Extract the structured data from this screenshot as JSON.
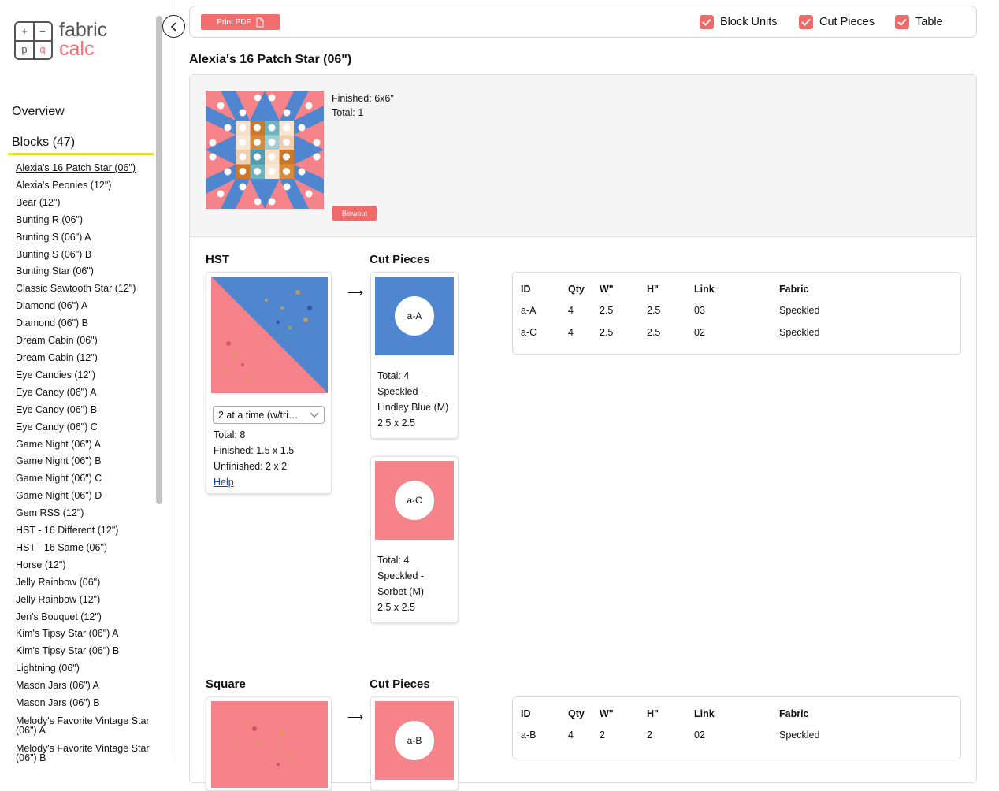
{
  "app": {
    "logo_line1": "fabric",
    "logo_line2": "calc",
    "logo_cells": [
      "+",
      "−",
      "p",
      "q"
    ]
  },
  "sidebar": {
    "overview_label": "Overview",
    "blocks_label": "Blocks (47)",
    "items": [
      "Alexia's 16 Patch Star (06\")",
      "Alexia's Peonies (12\")",
      "Bear (12\")",
      "Bunting R (06\")",
      "Bunting S (06\") A",
      "Bunting S (06\") B",
      "Bunting Star (06\")",
      "Classic Sawtooth Star (12\")",
      "Diamond (06\") A",
      "Diamond (06\") B",
      "Dream Cabin (06\")",
      "Dream Cabin (12\")",
      "Eye Candies (12\")",
      "Eye Candy (06\") A",
      "Eye Candy (06\") B",
      "Eye Candy (06\") C",
      "Game Night (06\") A",
      "Game Night (06\") B",
      "Game Night (06\") C",
      "Game Night (06\") D",
      "Gem RSS (12\")",
      "HST - 16 Different (12\")",
      "HST - 16 Same (06\")",
      "Horse (12\")",
      "Jelly Rainbow (06\")",
      "Jelly Rainbow (12\")",
      "Jen's Bouquet (12\")",
      "Kim's Tipsy Star (06\") A",
      "Kim's Tipsy Star (06\") B",
      "Lightning (06\")",
      "Mason Jars (06\") A",
      "Mason Jars (06\") B",
      "Melody's Favorite Vintage Star (06\") A",
      "Melody's Favorite Vintage Star (06\") B"
    ]
  },
  "toolbar": {
    "print_label": "Print PDF",
    "checkboxes": [
      {
        "label": "Block Units",
        "checked": true
      },
      {
        "label": "Cut Pieces",
        "checked": true
      },
      {
        "label": "Table",
        "checked": true
      }
    ]
  },
  "block": {
    "title": "Alexia's 16 Patch Star (06\")",
    "finished": "Finished: 6x6\"",
    "total": "Total: 1",
    "blowout_label": "Blowout"
  },
  "colors": {
    "accent": "#f06a6a",
    "pink": "#f7838a",
    "blue": "#4f86cf",
    "highlight": "#dfe23a",
    "link": "#1a3fc6"
  },
  "units": [
    {
      "name": "HST",
      "cut_title": "Cut Pieces",
      "method": "2 at a time (w/tri…",
      "total": "Total: 8",
      "finished": "Finished: 1.5 x 1.5",
      "unfinished": "Unfinished: 2 x 2",
      "help": "Help",
      "pieces": [
        {
          "id": "a-A",
          "total": "Total: 4",
          "fabric1": "Speckled -",
          "fabric2": "Lindley Blue (M)",
          "size": "2.5 x 2.5"
        },
        {
          "id": "a-C",
          "total": "Total: 4",
          "fabric1": "Speckled -",
          "fabric2": "Sorbet (M)",
          "size": "2.5 x 2.5"
        }
      ],
      "table": {
        "headers": [
          "ID",
          "Qty",
          "W\"",
          "H\"",
          "Link",
          "Fabric"
        ],
        "rows": [
          [
            "a-A",
            "4",
            "2.5",
            "2.5",
            "03",
            "Speckled"
          ],
          [
            "a-C",
            "4",
            "2.5",
            "2.5",
            "02",
            "Speckled"
          ]
        ]
      }
    },
    {
      "name": "Square",
      "cut_title": "Cut Pieces",
      "pieces": [
        {
          "id": "a-B"
        }
      ],
      "table": {
        "headers": [
          "ID",
          "Qty",
          "W\"",
          "H\"",
          "Link",
          "Fabric"
        ],
        "rows": [
          [
            "a-B",
            "4",
            "2",
            "2",
            "02",
            "Speckled"
          ]
        ]
      }
    }
  ]
}
